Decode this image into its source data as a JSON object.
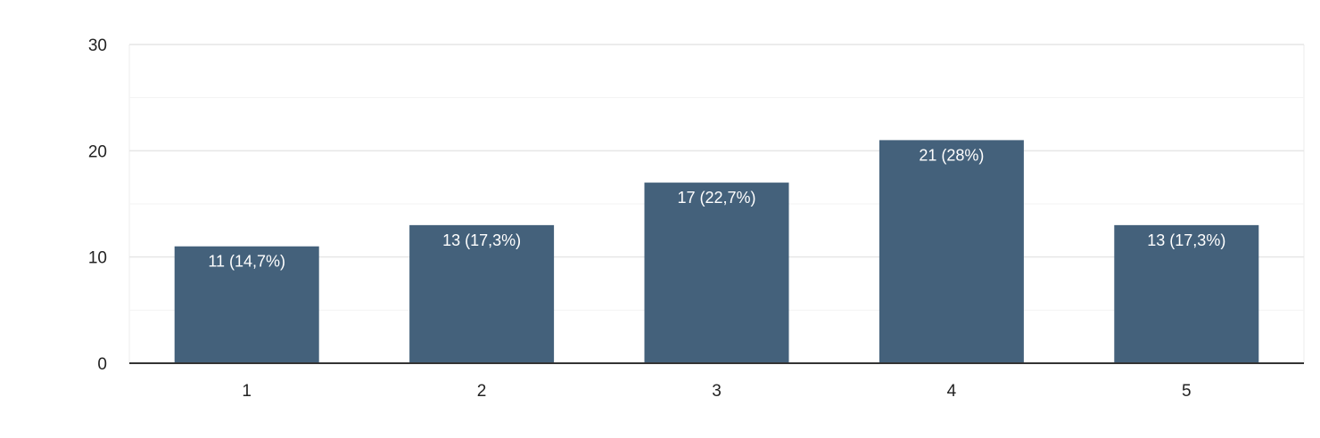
{
  "chart_data": {
    "type": "bar",
    "categories": [
      "1",
      "2",
      "3",
      "4",
      "5"
    ],
    "values": [
      11,
      13,
      17,
      21,
      13
    ],
    "data_labels": [
      "11 (14,7%)",
      "13 (17,3%)",
      "17 (22,7%)",
      "21 (28%)",
      "13 (17,3%)"
    ],
    "ylim": [
      0,
      30
    ],
    "yticks": [
      0,
      10,
      20,
      30
    ],
    "minor_gridlines": [
      5,
      15,
      25
    ],
    "grid": true,
    "bar_color": "#44617b",
    "title": "",
    "xlabel": "",
    "ylabel": ""
  }
}
